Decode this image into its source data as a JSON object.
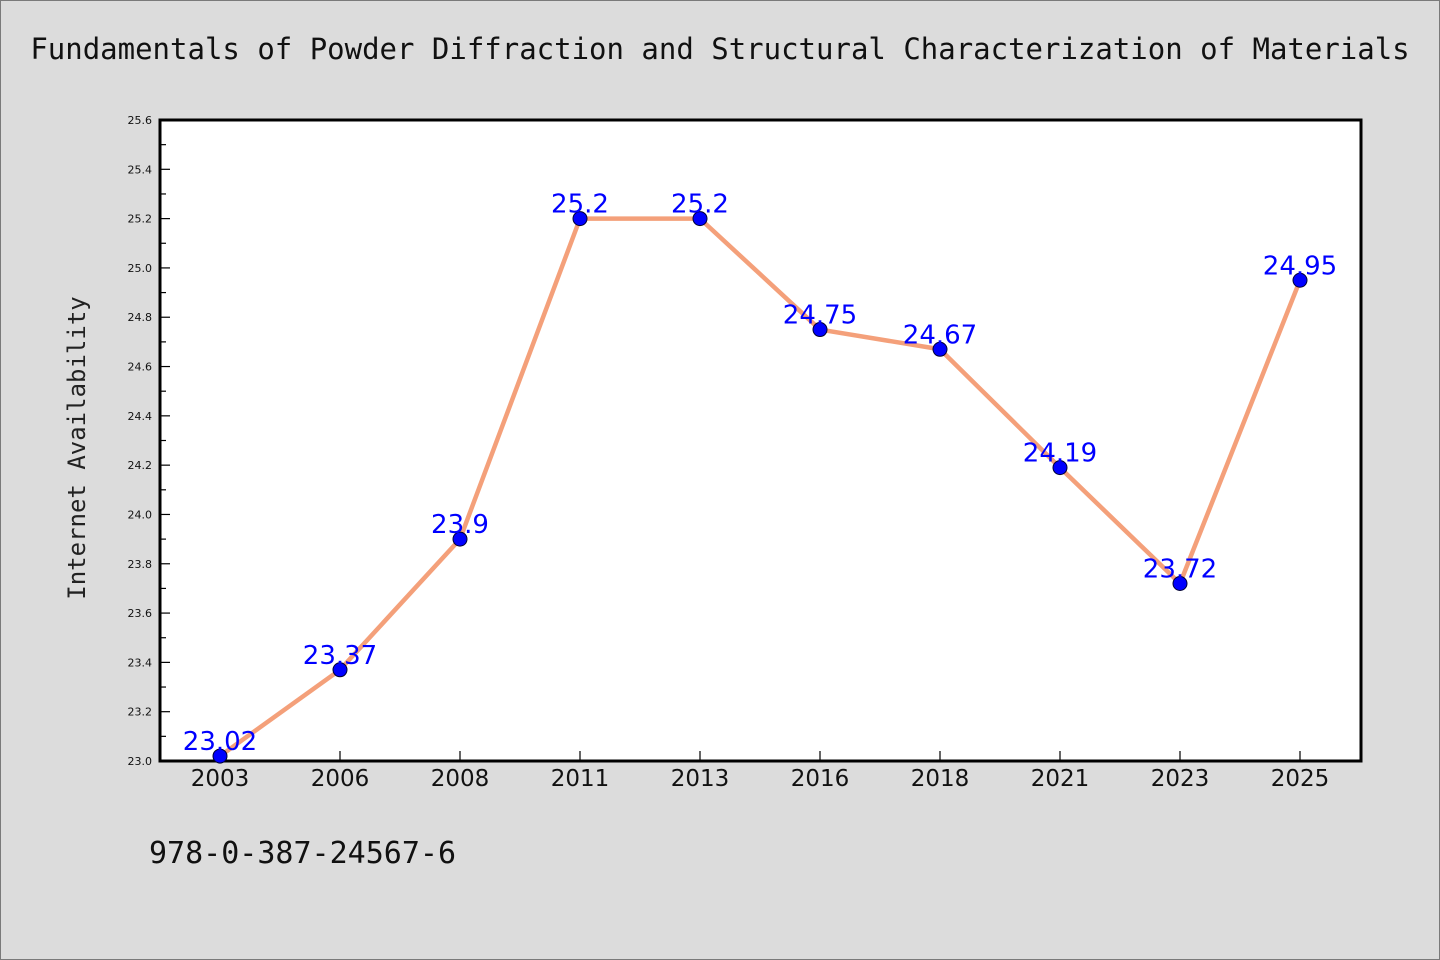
{
  "title": "Fundamentals of Powder Diffraction and Structural Characterization of Materials",
  "footer": "978-0-387-24567-6",
  "colors": {
    "background": "#dcdcdc",
    "plot_area": "#ffffff",
    "line": "#f4a07a",
    "marker": "#0000ff",
    "data_label": "#0000ff"
  },
  "chart_data": {
    "type": "line",
    "title": "Fundamentals of Powder Diffraction and Structural Characterization of Materials",
    "xlabel": "",
    "ylabel": "Internet Availability",
    "categories": [
      "2003",
      "2006",
      "2008",
      "2011",
      "2013",
      "2016",
      "2018",
      "2021",
      "2023",
      "2025"
    ],
    "values": [
      23.02,
      23.37,
      23.9,
      25.2,
      25.2,
      24.75,
      24.67,
      24.19,
      23.72,
      24.95
    ],
    "data_labels": [
      "23.02",
      "23.37",
      "23.9",
      "25.2",
      "25.2",
      "24.75",
      "24.67",
      "24.19",
      "23.72",
      "24.95"
    ],
    "ylim": [
      23.0,
      25.6
    ],
    "yticks": [
      "23.0",
      "23.2",
      "23.4",
      "23.6",
      "23.8",
      "24.0",
      "24.2",
      "24.4",
      "24.6",
      "24.8",
      "25.0",
      "25.2",
      "25.4",
      "25.6"
    ],
    "grid": false,
    "legend": "none"
  }
}
